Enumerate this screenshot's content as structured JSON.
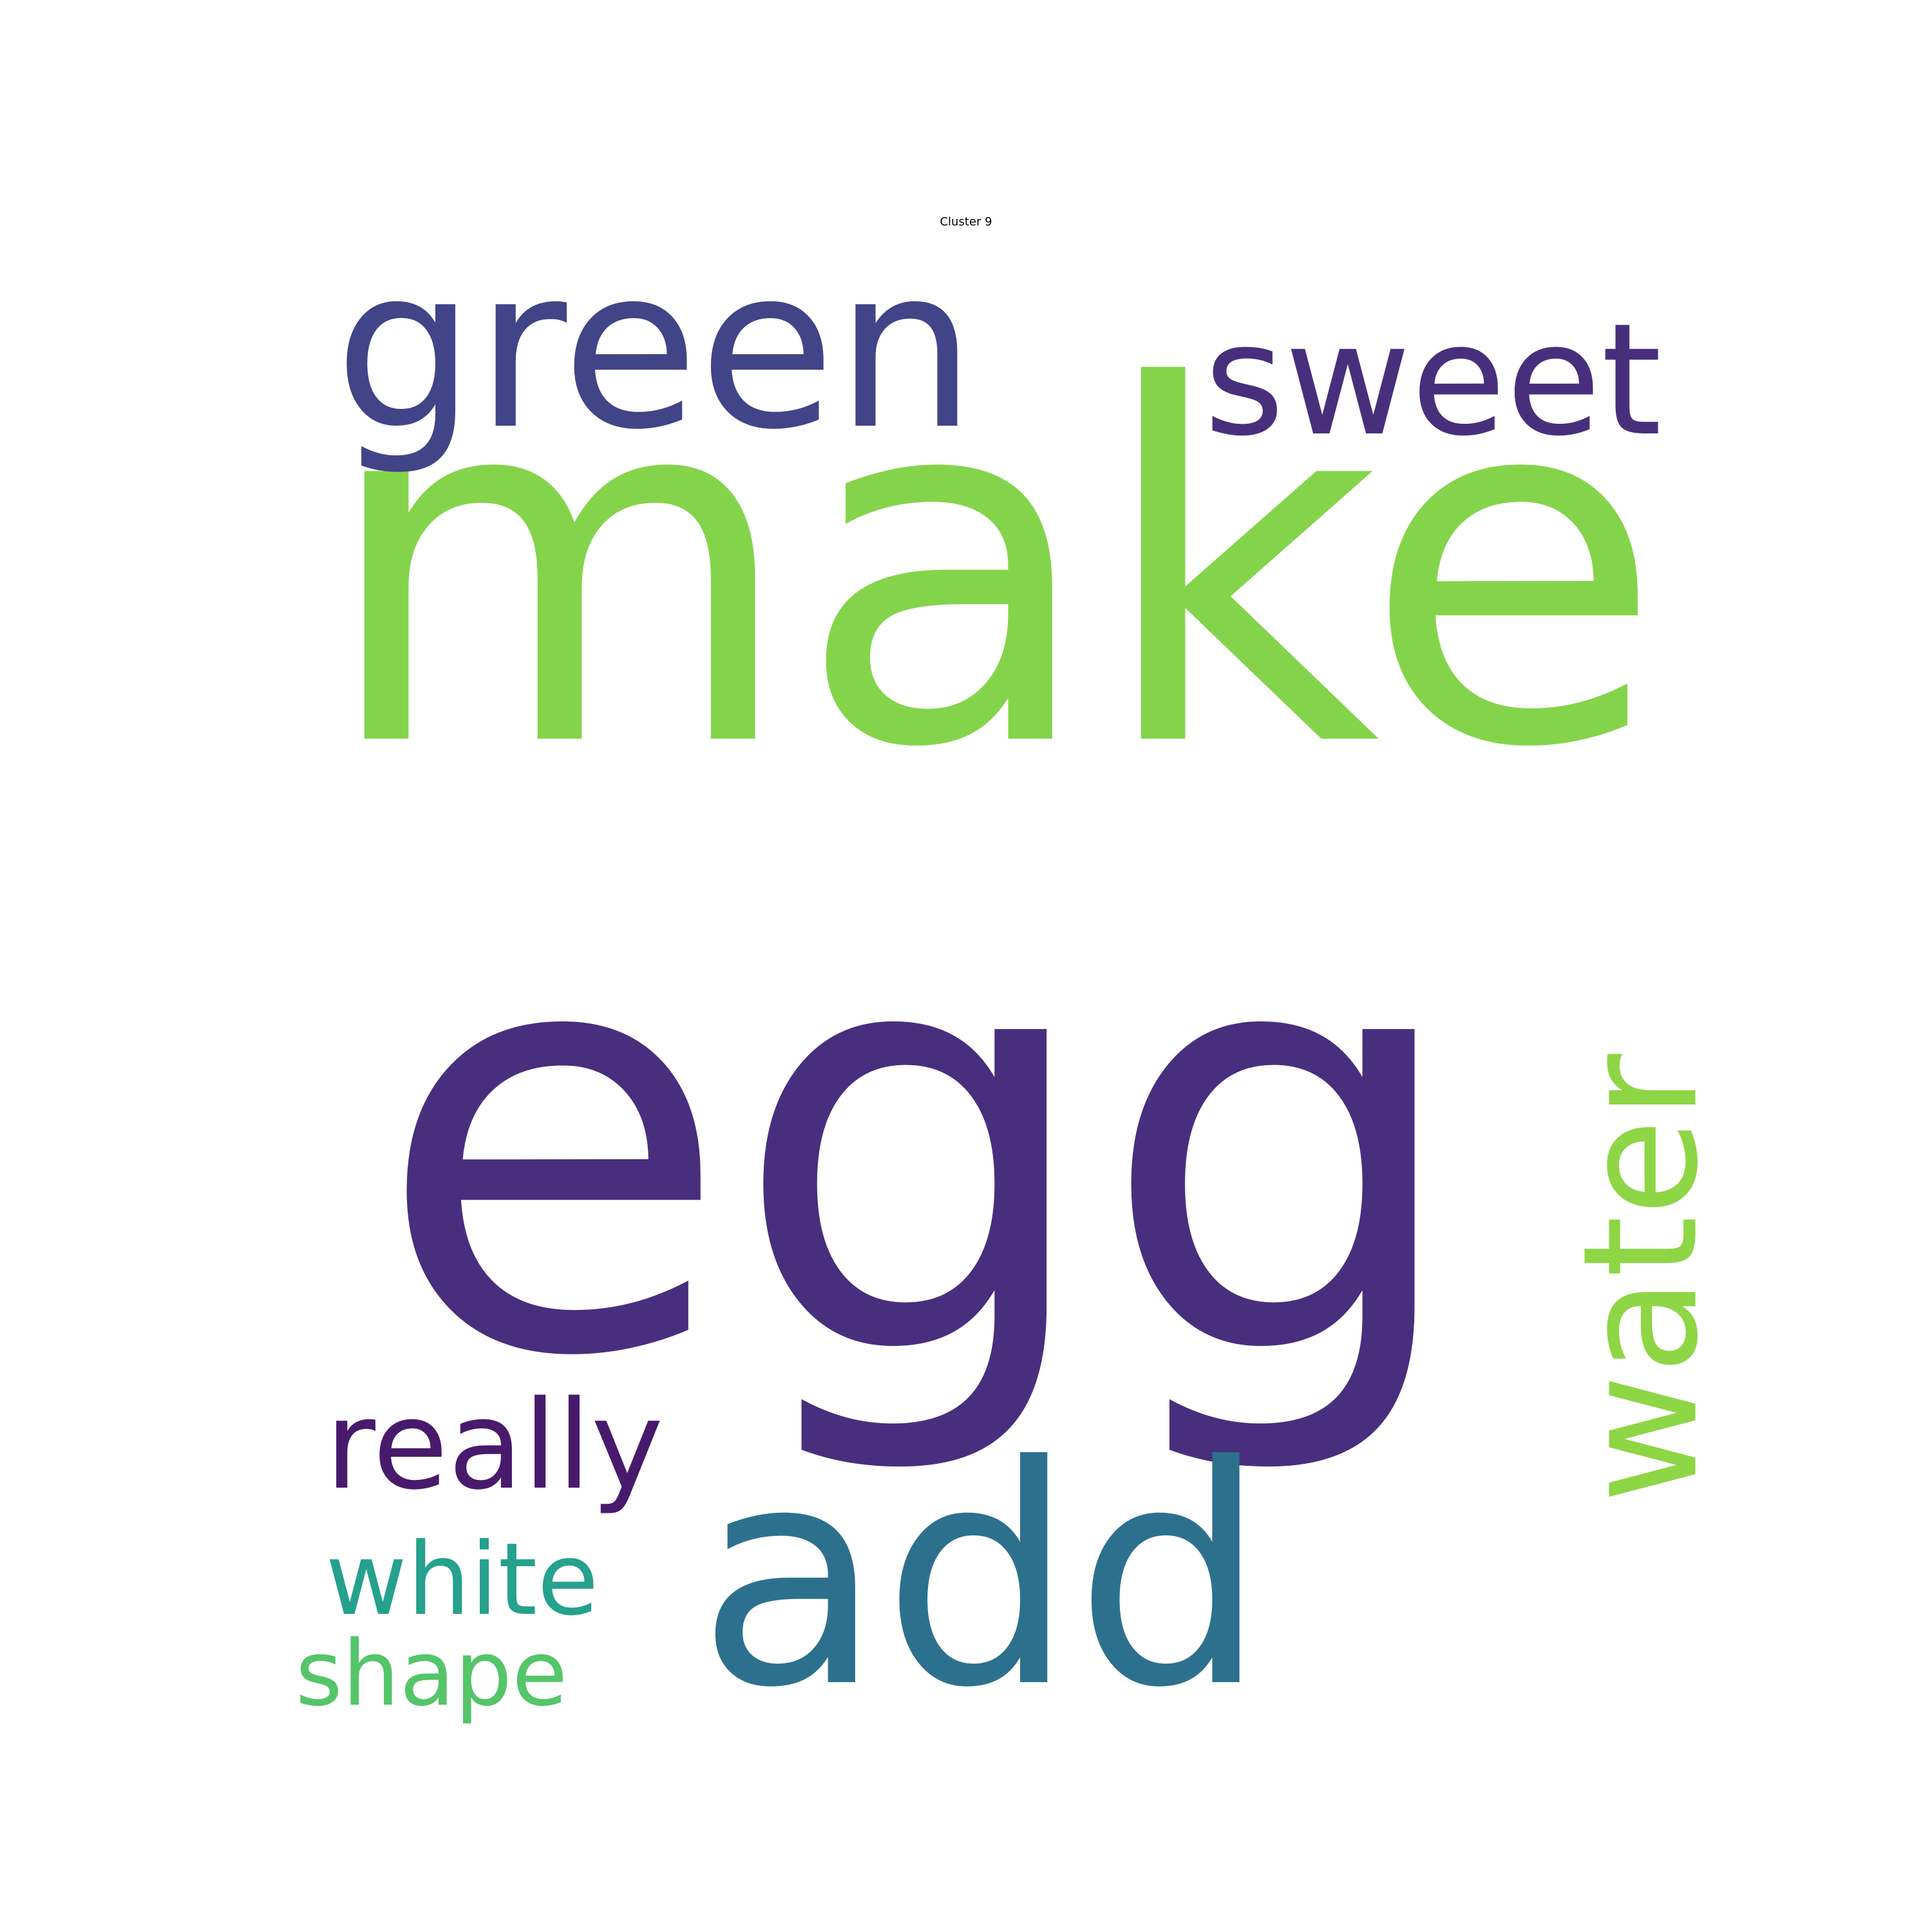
{
  "title": "Cluster 9",
  "words": [
    {
      "text": "egg",
      "color": "#472f7d",
      "rotate": 0
    },
    {
      "text": "make",
      "color": "#84d44b",
      "rotate": 0
    },
    {
      "text": "add",
      "color": "#2d708e",
      "rotate": 0
    },
    {
      "text": "water",
      "color": "#8ed645",
      "rotate": -90
    },
    {
      "text": "green",
      "color": "#414487",
      "rotate": 0
    },
    {
      "text": "sweet",
      "color": "#482f7c",
      "rotate": 0
    },
    {
      "text": "really",
      "color": "#481a6c",
      "rotate": 0
    },
    {
      "text": "white",
      "color": "#25a18e",
      "rotate": 0
    },
    {
      "text": "shape",
      "color": "#54c568",
      "rotate": 0
    }
  ]
}
